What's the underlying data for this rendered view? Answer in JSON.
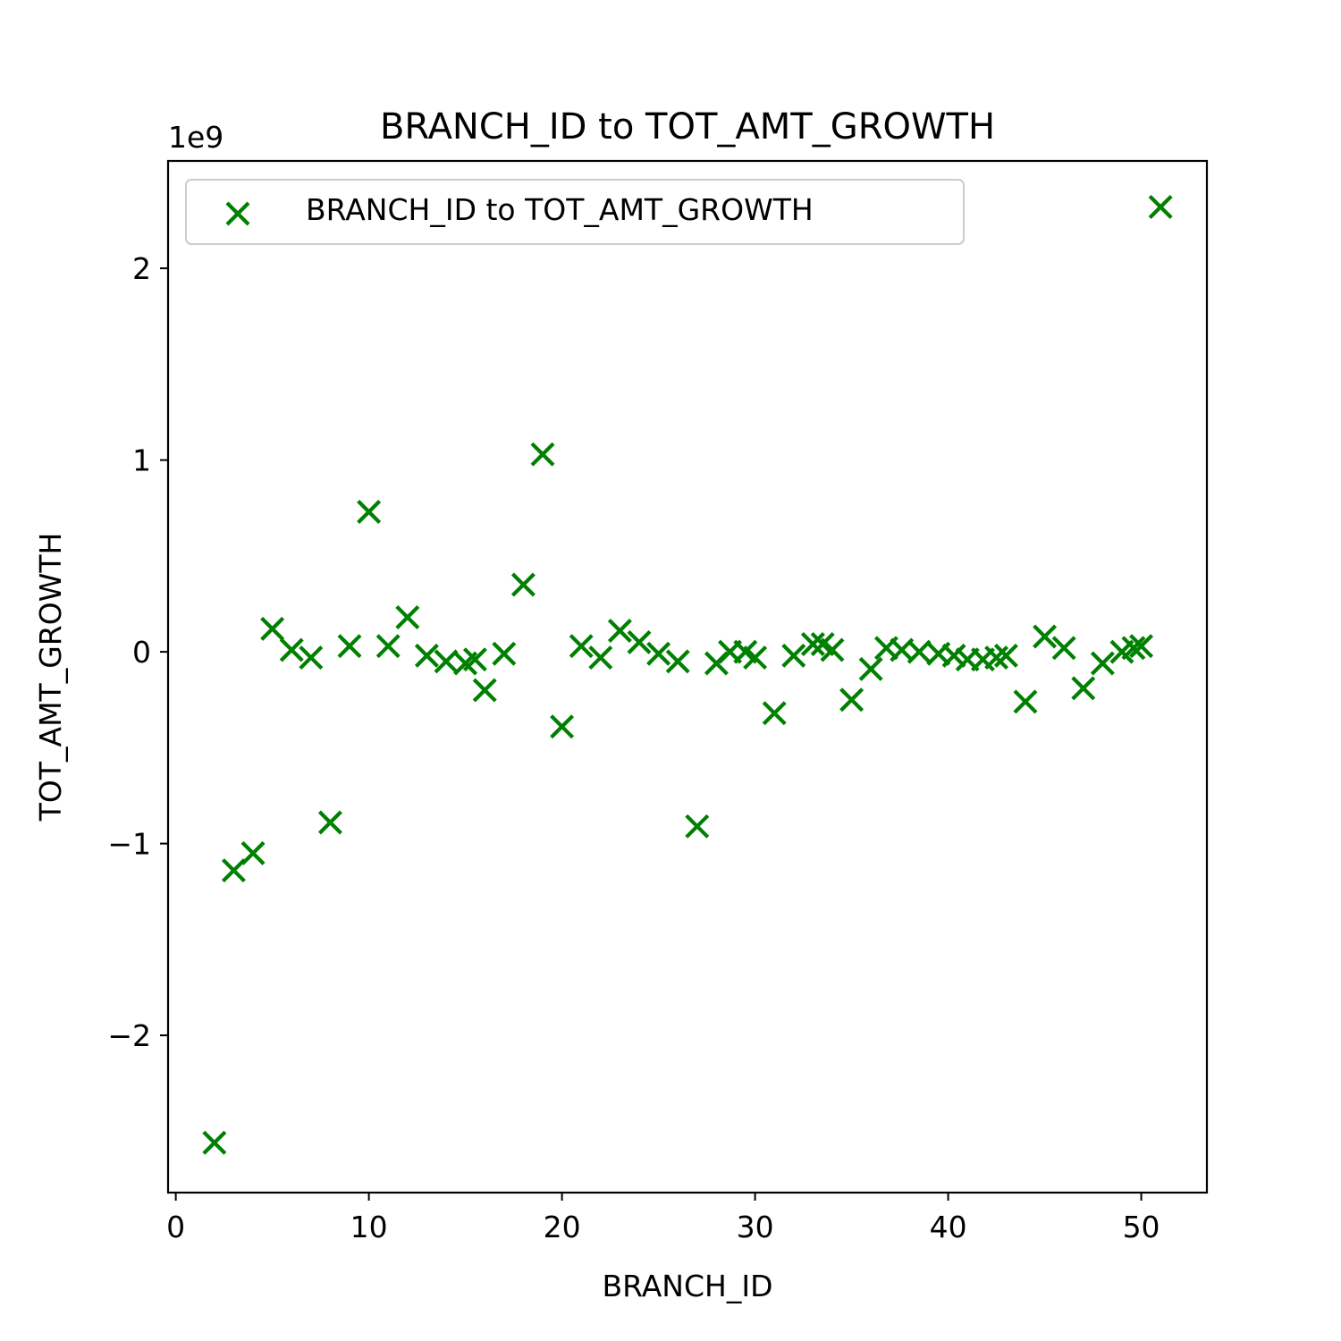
{
  "chart_data": {
    "type": "scatter",
    "title": "BRANCH_ID to TOT_AMT_GROWTH",
    "xlabel": "BRANCH_ID",
    "ylabel": "TOT_AMT_GROWTH",
    "y_offset_label": "1e9",
    "xlim": [
      -0.4,
      53.4
    ],
    "ylim": [
      -2.82,
      2.56
    ],
    "xticks": [
      0,
      10,
      20,
      30,
      40,
      50
    ],
    "xtick_labels": [
      "0",
      "10",
      "20",
      "30",
      "40",
      "50"
    ],
    "yticks": [
      -2,
      -1,
      0,
      1,
      2
    ],
    "ytick_labels": [
      "−2",
      "−1",
      "0",
      "1",
      "2"
    ],
    "grid": false,
    "legend": {
      "position": "upper left",
      "entries": [
        "BRANCH_ID to TOT_AMT_GROWTH"
      ]
    },
    "series": [
      {
        "name": "BRANCH_ID to TOT_AMT_GROWTH",
        "marker": "x",
        "color": "#008000",
        "points": [
          [
            2,
            -2.56
          ],
          [
            3,
            -1.14
          ],
          [
            4,
            -1.05
          ],
          [
            5,
            0.12
          ],
          [
            6,
            0.01
          ],
          [
            7,
            -0.03
          ],
          [
            8,
            -0.89
          ],
          [
            9,
            0.03
          ],
          [
            10,
            0.73
          ],
          [
            11,
            0.03
          ],
          [
            12,
            0.18
          ],
          [
            13,
            -0.02
          ],
          [
            14,
            -0.05
          ],
          [
            15,
            -0.06
          ],
          [
            15.5,
            -0.04
          ],
          [
            16,
            -0.2
          ],
          [
            17,
            -0.01
          ],
          [
            18,
            0.35
          ],
          [
            19,
            1.03
          ],
          [
            20,
            -0.39
          ],
          [
            21,
            0.03
          ],
          [
            22,
            -0.03
          ],
          [
            23,
            0.11
          ],
          [
            24,
            0.05
          ],
          [
            25,
            -0.01
          ],
          [
            26,
            -0.05
          ],
          [
            27,
            -0.91
          ],
          [
            28,
            -0.06
          ],
          [
            28.7,
            0.0
          ],
          [
            29.5,
            0.0
          ],
          [
            30,
            -0.03
          ],
          [
            31,
            -0.32
          ],
          [
            32,
            -0.02
          ],
          [
            33,
            0.04
          ],
          [
            33.5,
            0.04
          ],
          [
            34,
            0.01
          ],
          [
            35,
            -0.25
          ],
          [
            36,
            -0.09
          ],
          [
            36.8,
            0.02
          ],
          [
            37.6,
            0.01
          ],
          [
            38.5,
            0.0
          ],
          [
            39.5,
            -0.01
          ],
          [
            40.3,
            -0.02
          ],
          [
            41,
            -0.04
          ],
          [
            41.8,
            -0.04
          ],
          [
            42.5,
            -0.03
          ],
          [
            43,
            -0.02
          ],
          [
            44,
            -0.26
          ],
          [
            45,
            0.08
          ],
          [
            46,
            0.02
          ],
          [
            47,
            -0.19
          ],
          [
            48,
            -0.06
          ],
          [
            49,
            0.0
          ],
          [
            49.6,
            0.02
          ],
          [
            50,
            0.03
          ],
          [
            51,
            2.32
          ]
        ]
      }
    ]
  }
}
